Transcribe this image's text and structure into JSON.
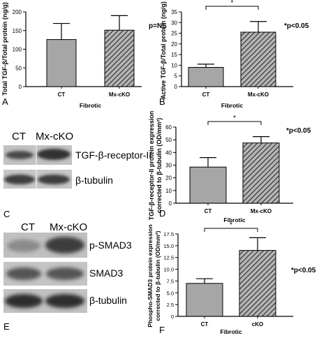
{
  "chart_data": [
    {
      "panel": "A",
      "type": "bar",
      "ylabel": "Total TGF-β/Total protein (ng/g)",
      "xlabel": "Fibrotic",
      "categories": [
        "CT",
        "Mx-cKO"
      ],
      "values": [
        126,
        151
      ],
      "errors": [
        43,
        39
      ],
      "ylim": [
        0,
        200
      ],
      "yticks": [
        "0",
        "50",
        "100",
        "150",
        "200"
      ],
      "annotation": "p=NS",
      "significance": ""
    },
    {
      "panel": "B",
      "type": "bar",
      "ylabel": "Active TGF-β/Total protein (ng/g)",
      "xlabel": "Fibrotic",
      "categories": [
        "CT",
        "Mx-cKO"
      ],
      "values": [
        9,
        25.5
      ],
      "errors": [
        1.5,
        5
      ],
      "ylim": [
        0,
        35
      ],
      "yticks": [
        "0",
        "5",
        "10",
        "15",
        "20",
        "25",
        "30",
        "35"
      ],
      "annotation": "*p<0.05",
      "significance": "*"
    },
    {
      "panel": "D",
      "type": "bar",
      "ylabel": "TGF-β-receptor-II protein expression corrected to β-tubulin (OD/mm²)",
      "ylabel_lines": [
        "TGF-β-receptor-II protein expression",
        "corrected to β-tubulin (OD/mm²)"
      ],
      "xlabel": "Fibrotic",
      "categories": [
        "CT",
        "Mx-cKO"
      ],
      "values": [
        28.5,
        47.5
      ],
      "errors": [
        7.5,
        5
      ],
      "ylim": [
        0,
        60
      ],
      "yticks": [
        "0",
        "10",
        "20",
        "30",
        "40",
        "50",
        "60"
      ],
      "annotation": "*p<0.05",
      "significance": "*"
    },
    {
      "panel": "F",
      "type": "bar",
      "ylabel": "Phospho-SMAD3 protein expression corrected to β-tubulin (OD/mm²)",
      "ylabel_lines": [
        "Phospho-SMAD3 protein expression",
        "corrected to β-tubulin (OD/mm²)"
      ],
      "xlabel": "Fibrotic",
      "categories": [
        "CT",
        "cKO"
      ],
      "values": [
        7,
        14
      ],
      "errors": [
        1,
        2.7
      ],
      "ylim": [
        0,
        17.5
      ],
      "yticks": [
        "0",
        "2.5",
        "5.0",
        "7.5",
        "10.0",
        "12.5",
        "15.0",
        "17.5"
      ],
      "annotation": "*p<0.05",
      "significance": "*"
    }
  ],
  "blots": {
    "C": {
      "panel": "C",
      "headers": [
        "CT",
        "Mx-cKO"
      ],
      "bands": [
        "TGF-β-receptor-II",
        "β-tubulin"
      ]
    },
    "E": {
      "panel": "E",
      "headers": [
        "CT",
        "Mx-cKO"
      ],
      "bands": [
        "p-SMAD3",
        "SMAD3",
        "β-tubulin"
      ]
    }
  },
  "colors": {
    "ct_bar": "#a6a6a6",
    "cko_bar_fill": "#b5b5b5",
    "cko_hatch": "#3a3a3a",
    "blot_background": "#c4c4c4",
    "blot_band": "#3c3c3c"
  }
}
